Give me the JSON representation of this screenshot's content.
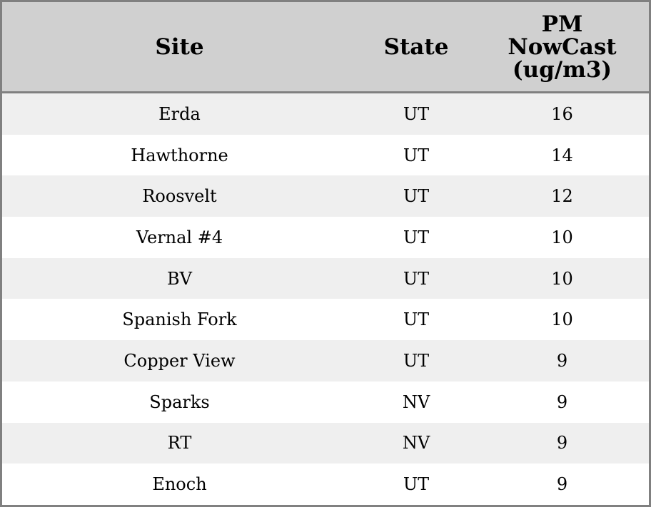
{
  "chart_data": {
    "type": "table",
    "columns": [
      "Site",
      "State",
      "PM NowCast (ug/m3)"
    ],
    "rows": [
      [
        "Erda",
        "UT",
        "16"
      ],
      [
        "Hawthorne",
        "UT",
        "14"
      ],
      [
        "Roosvelt",
        "UT",
        "12"
      ],
      [
        "Vernal #4",
        "UT",
        "10"
      ],
      [
        "BV",
        "UT",
        "10"
      ],
      [
        "Spanish Fork",
        "UT",
        "10"
      ],
      [
        "Copper View",
        "UT",
        "9"
      ],
      [
        "Sparks",
        "NV",
        "9"
      ],
      [
        "RT",
        "NV",
        "9"
      ],
      [
        "Enoch",
        "UT",
        "9"
      ]
    ],
    "header_color": "#d0d0d0",
    "stripe_color": "#efefef",
    "border_color": "#808080"
  }
}
